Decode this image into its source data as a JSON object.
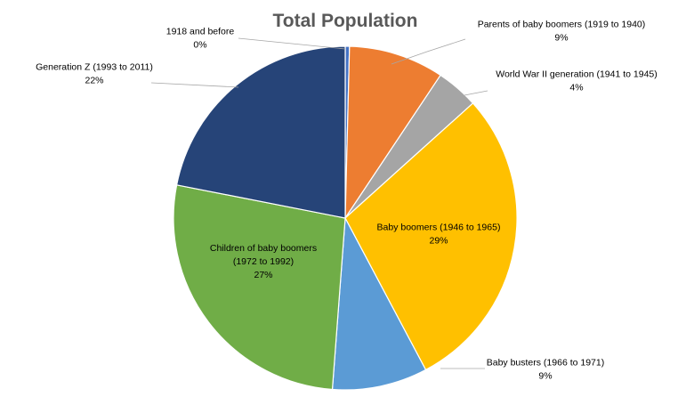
{
  "chart_data": {
    "type": "pie",
    "title": "Total Population",
    "slices": [
      {
        "line1": "1918 and before",
        "line2": "",
        "pct_label": "0%",
        "value": 0.4,
        "color": "#4472c4"
      },
      {
        "line1": "Parents of baby boomers (1919 to 1940)",
        "line2": "",
        "pct_label": "9%",
        "value": 9,
        "color": "#ed7d31"
      },
      {
        "line1": "World War II generation (1941 to 1945)",
        "line2": "",
        "pct_label": "4%",
        "value": 4,
        "color": "#a5a5a5"
      },
      {
        "line1": "Baby boomers (1946 to 1965)",
        "line2": "",
        "pct_label": "29%",
        "value": 29,
        "color": "#ffc000"
      },
      {
        "line1": "Baby busters (1966 to 1971)",
        "line2": "",
        "pct_label": "9%",
        "value": 9,
        "color": "#5b9bd5"
      },
      {
        "line1": "Children of baby boomers",
        "line2": "(1972 to 1992)",
        "pct_label": "27%",
        "value": 27,
        "color": "#70ad47"
      },
      {
        "line1": "Generation Z (1993 to 2011)",
        "line2": "",
        "pct_label": "22%",
        "value": 22,
        "color": "#264478"
      }
    ]
  }
}
